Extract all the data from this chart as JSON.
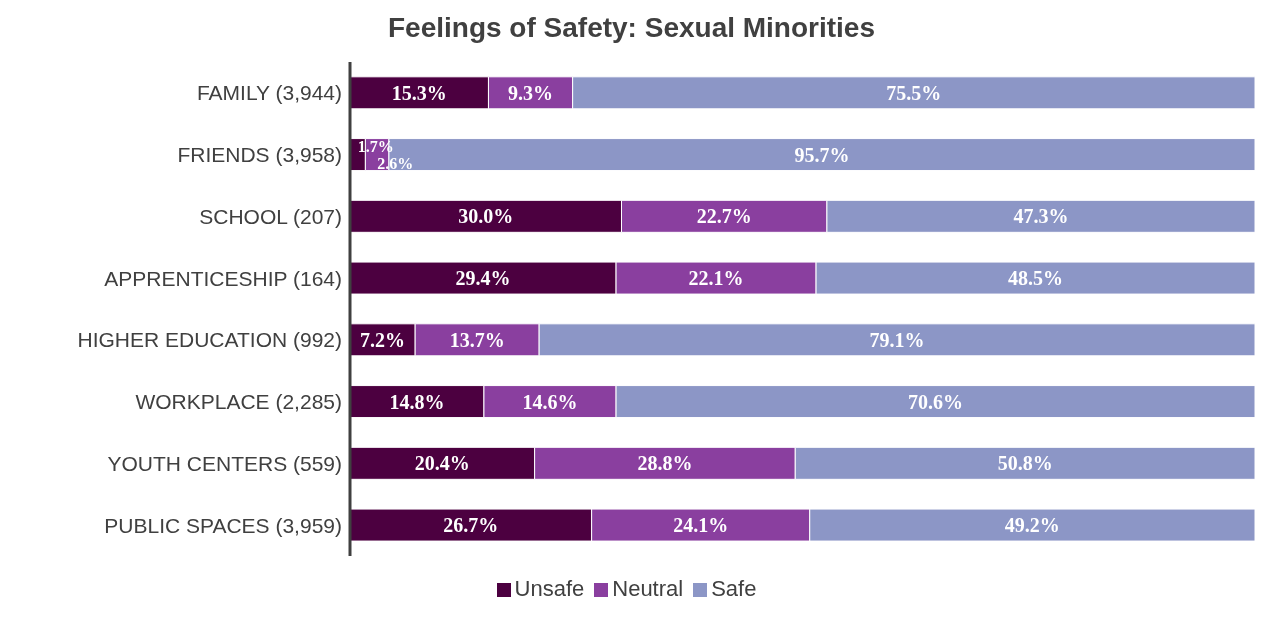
{
  "chart_data": {
    "type": "bar",
    "title": "Feelings of Safety: Sexual Minorities",
    "orientation": "horizontal",
    "stacked": true,
    "categories": [
      "FAMILY (3,944)",
      "FRIENDS (3,958)",
      "SCHOOL (207)",
      "APPRENTICESHIP (164)",
      "HIGHER EDUCATION (992)",
      "WORKPLACE (2,285)",
      "YOUTH CENTERS (559)",
      "PUBLIC SPACES (3,959)"
    ],
    "series": [
      {
        "name": "Unsafe",
        "color": "#4c0040",
        "values": [
          15.3,
          1.7,
          30.0,
          29.4,
          7.2,
          14.8,
          20.4,
          26.7
        ],
        "value_labels": [
          "15.3%",
          "1.7%",
          "30.0%",
          "29.4%",
          "7.2%",
          "14.8%",
          "20.4%",
          "26.7%"
        ]
      },
      {
        "name": "Neutral",
        "color": "#8a3f9f",
        "values": [
          9.3,
          2.6,
          22.7,
          22.1,
          13.7,
          14.6,
          28.8,
          24.1
        ],
        "value_labels": [
          "9.3%",
          "2.6%",
          "22.7%",
          "22.1%",
          "13.7%",
          "14.6%",
          "28.8%",
          "24.1%"
        ]
      },
      {
        "name": "Safe",
        "color": "#8c96c6",
        "values": [
          75.5,
          95.7,
          47.3,
          48.5,
          79.1,
          70.6,
          50.8,
          49.2
        ],
        "value_labels": [
          "75.5%",
          "95.7%",
          "47.3%",
          "48.5%",
          "79.1%",
          "70.6%",
          "50.8%",
          "49.2%"
        ]
      }
    ],
    "xlim": [
      0,
      100
    ],
    "legend": "bottom",
    "tick_labels": "y"
  }
}
